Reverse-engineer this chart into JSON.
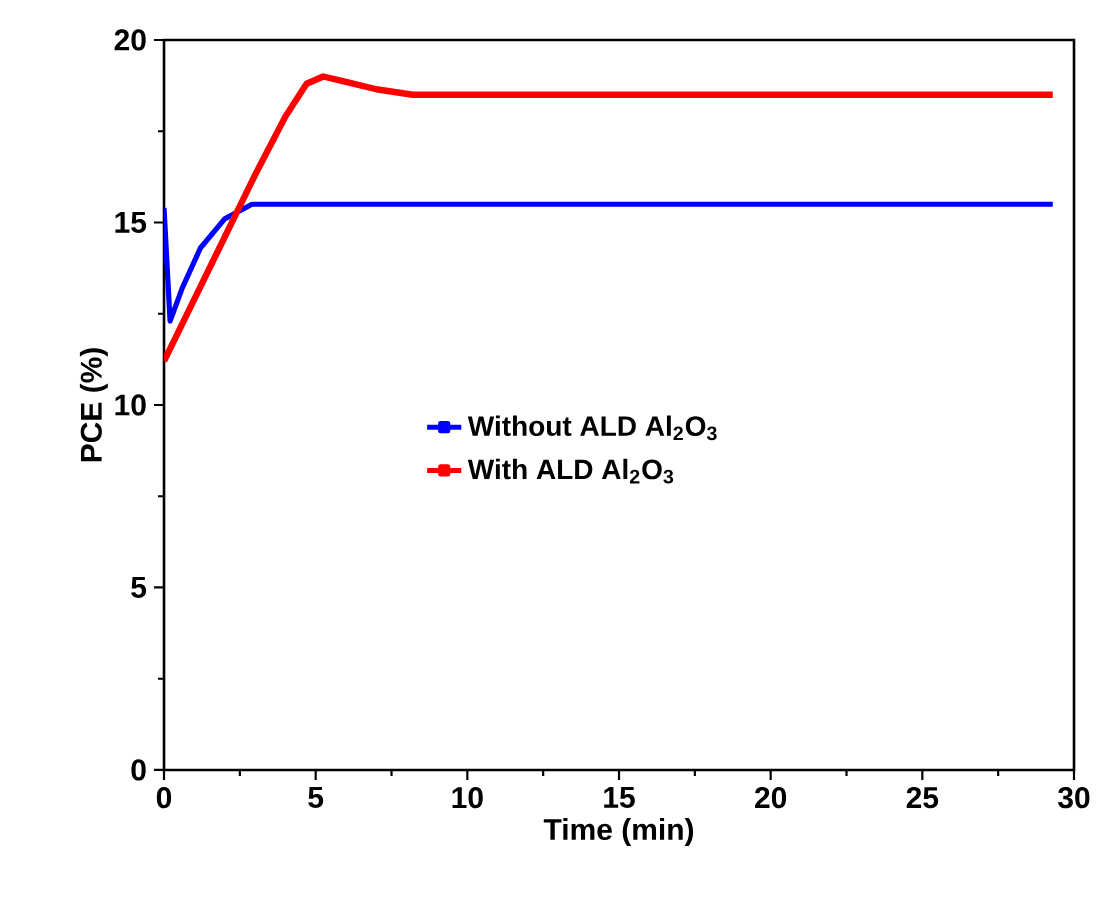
{
  "chart_data": {
    "type": "line",
    "xlabel": "Time (min)",
    "ylabel": "PCE (%)",
    "xlim": [
      0,
      30
    ],
    "ylim": [
      0,
      20
    ],
    "xticks": [
      0,
      5,
      10,
      15,
      20,
      25,
      30
    ],
    "yticks": [
      0,
      5,
      10,
      15,
      20
    ],
    "legend": "center",
    "grid": false,
    "series": [
      {
        "name": "Without ALD Al$_{2}$O$_{3}$",
        "color": "#0000ff",
        "x": [
          0,
          0.2,
          0.6,
          1.2,
          2.0,
          2.9,
          10,
          20,
          29.3
        ],
        "values": [
          15.4,
          12.3,
          13.2,
          14.3,
          15.1,
          15.5,
          15.5,
          15.5,
          15.5
        ]
      },
      {
        "name": "With ALD Al$_{2}$O$_{3}$",
        "color": "#ff0000",
        "x": [
          0,
          1,
          2,
          3,
          4,
          4.7,
          5.25,
          6,
          7,
          8.2,
          15,
          29.3
        ],
        "values": [
          11.2,
          12.9,
          14.6,
          16.3,
          17.9,
          18.8,
          19.0,
          18.85,
          18.65,
          18.5,
          18.5,
          18.5
        ]
      }
    ]
  }
}
